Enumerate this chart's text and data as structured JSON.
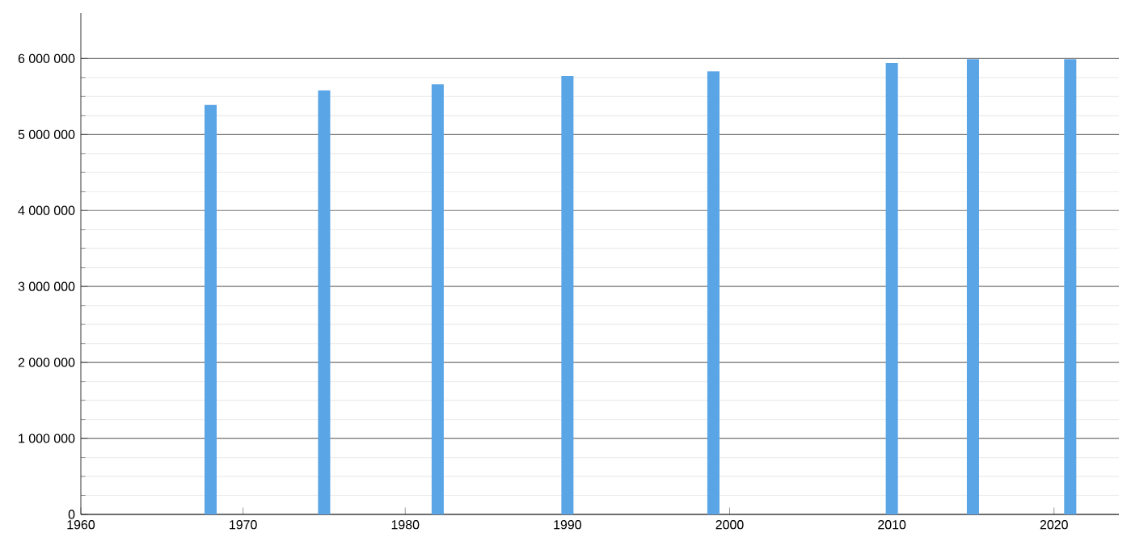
{
  "chart_data": {
    "type": "bar",
    "x": [
      1968,
      1975,
      1982,
      1990,
      1999,
      2010,
      2015,
      2021
    ],
    "values": [
      5390000,
      5580000,
      5660000,
      5770000,
      5830000,
      5940000,
      5990000,
      5990000
    ],
    "color": "#5aa5e6",
    "xlim": [
      1960,
      2024
    ],
    "xticks": [
      1960,
      1970,
      1980,
      1990,
      2000,
      2010,
      2020
    ],
    "ylim": [
      0,
      6600000
    ],
    "yticks": [
      {
        "value": 0,
        "label": "0"
      },
      {
        "value": 1000000,
        "label": "1 000 000"
      },
      {
        "value": 2000000,
        "label": "2 000 000"
      },
      {
        "value": 3000000,
        "label": "3 000 000"
      },
      {
        "value": 4000000,
        "label": "4 000 000"
      },
      {
        "value": 5000000,
        "label": "5 000 000"
      },
      {
        "value": 6000000,
        "label": "6 000 000"
      }
    ],
    "grid": "y"
  }
}
